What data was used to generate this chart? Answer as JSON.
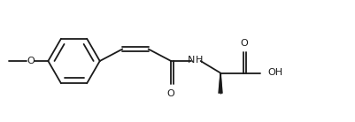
{
  "background_color": "#ffffff",
  "line_color": "#1a1a1a",
  "line_width": 1.3,
  "text_color": "#1a1a1a",
  "figsize": [
    4.02,
    1.38
  ],
  "dpi": 100,
  "xlim": [
    0,
    11
  ],
  "ylim": [
    0,
    3.8
  ],
  "font_size": 7.5
}
